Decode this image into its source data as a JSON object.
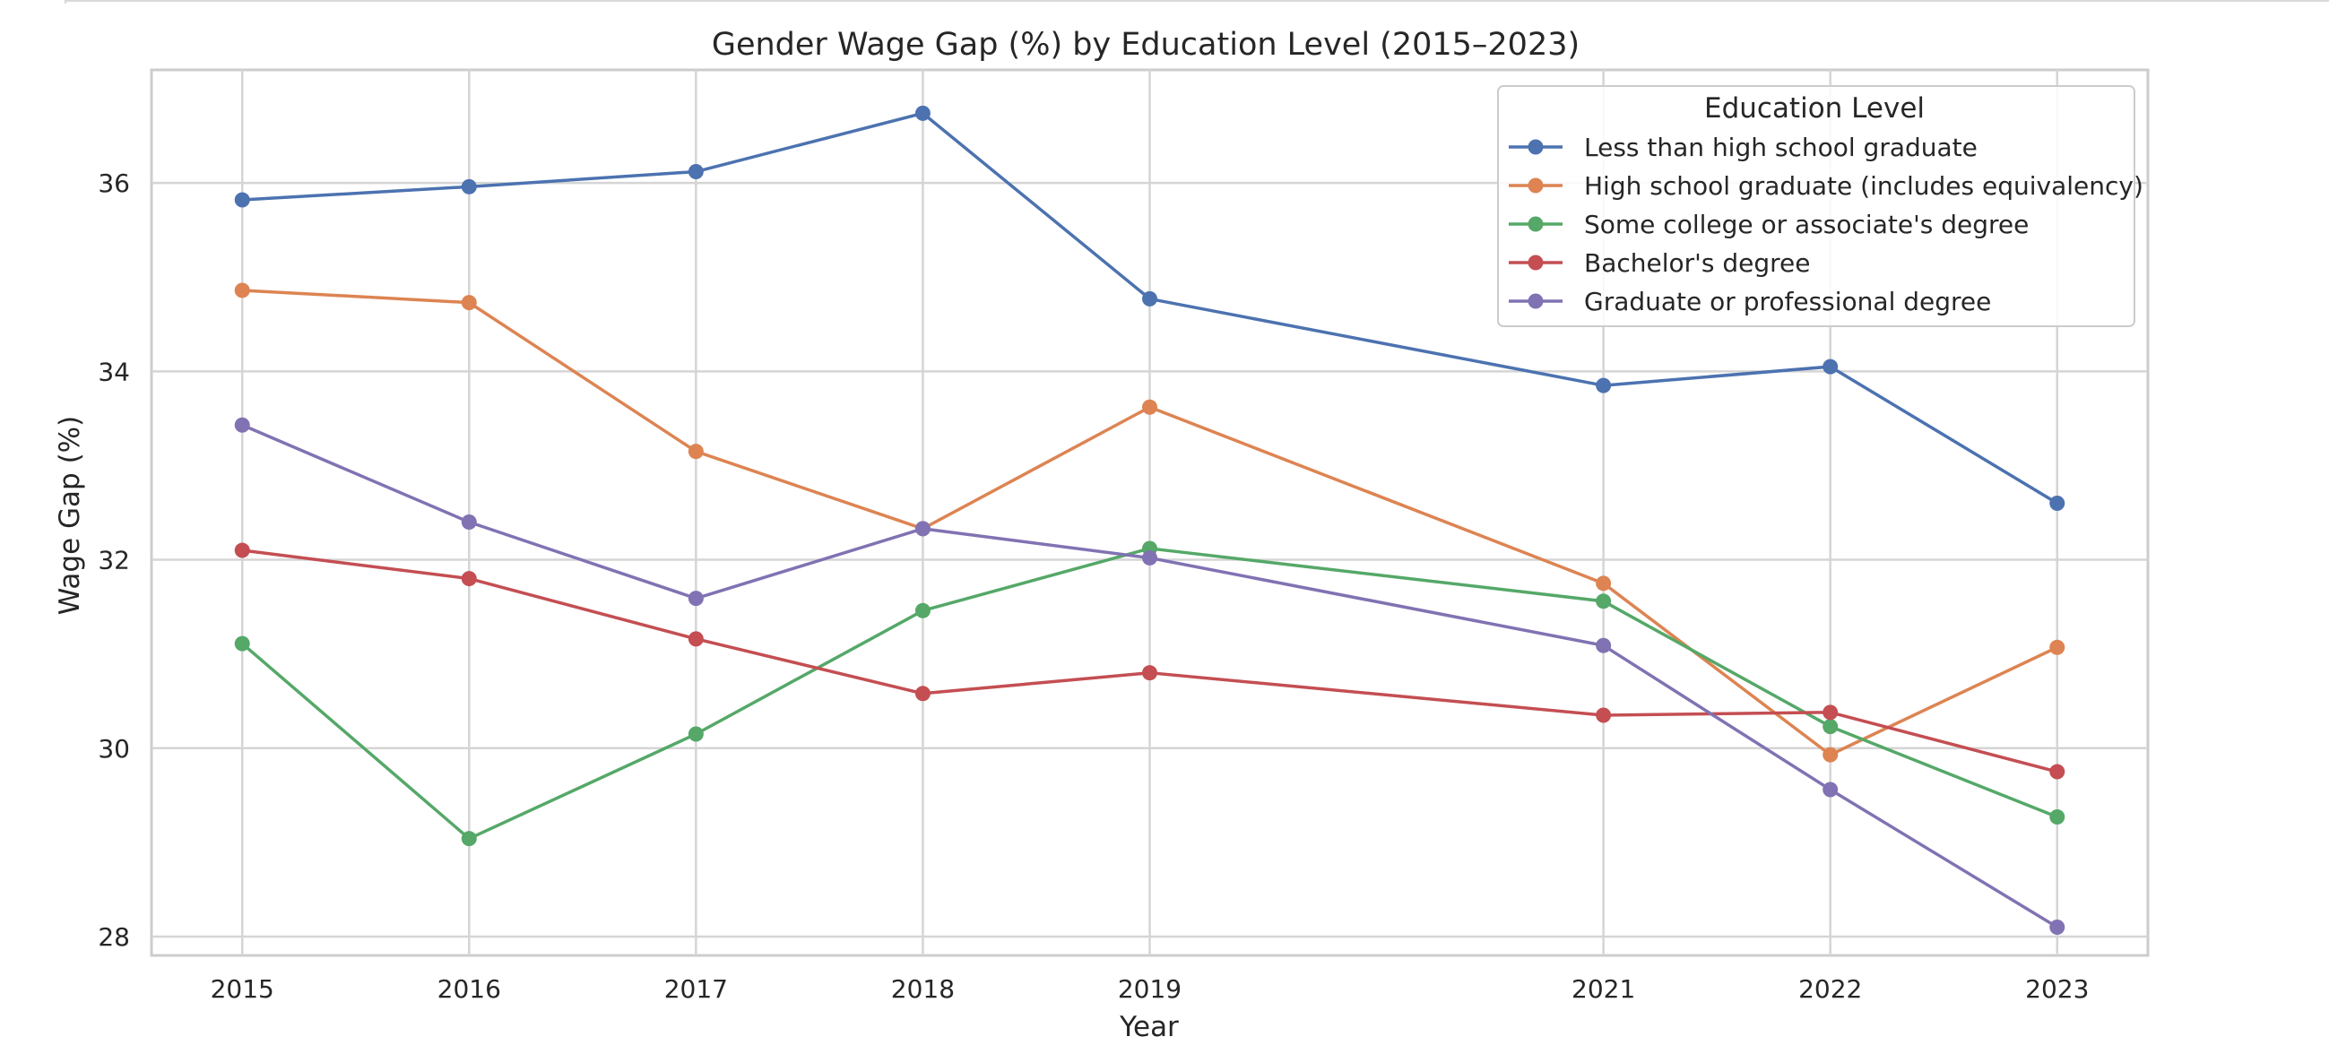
{
  "chart_data": {
    "type": "line",
    "title": "Gender Wage Gap (%) by Education Level (2015–2023)",
    "xlabel": "Year",
    "ylabel": "Wage Gap (%)",
    "x": [
      2015,
      2016,
      2017,
      2018,
      2019,
      2021,
      2022,
      2023
    ],
    "x_tick_labels": [
      "2015",
      "2016",
      "2017",
      "2018",
      "2019",
      "2021",
      "2022",
      "2023"
    ],
    "xlim": [
      2014.6,
      2023.4
    ],
    "ylim": [
      27.8,
      37.2
    ],
    "y_ticks": [
      28,
      30,
      32,
      34,
      36
    ],
    "y_tick_labels": [
      "28",
      "30",
      "32",
      "34",
      "36"
    ],
    "grid": true,
    "legend_title": "Education Level",
    "legend_position": "top-right",
    "series": [
      {
        "name": "Less than high school graduate",
        "color": "#4c72b0",
        "values": [
          35.82,
          35.96,
          36.12,
          36.74,
          34.77,
          33.85,
          34.05,
          32.6
        ]
      },
      {
        "name": "High school graduate (includes equivalency)",
        "color": "#dd8452",
        "values": [
          34.86,
          34.73,
          33.15,
          32.33,
          33.62,
          31.75,
          29.93,
          31.07
        ]
      },
      {
        "name": "Some college or associate's degree",
        "color": "#55a868",
        "values": [
          31.11,
          29.04,
          30.15,
          31.46,
          32.12,
          31.56,
          30.23,
          29.27
        ]
      },
      {
        "name": "Bachelor's degree",
        "color": "#c44e52",
        "values": [
          32.1,
          31.8,
          31.16,
          30.58,
          30.8,
          30.35,
          30.38,
          29.75
        ]
      },
      {
        "name": "Graduate or professional degree",
        "color": "#8172b3",
        "values": [
          33.43,
          32.4,
          31.59,
          32.33,
          32.02,
          31.09,
          29.56,
          28.1
        ]
      }
    ]
  }
}
